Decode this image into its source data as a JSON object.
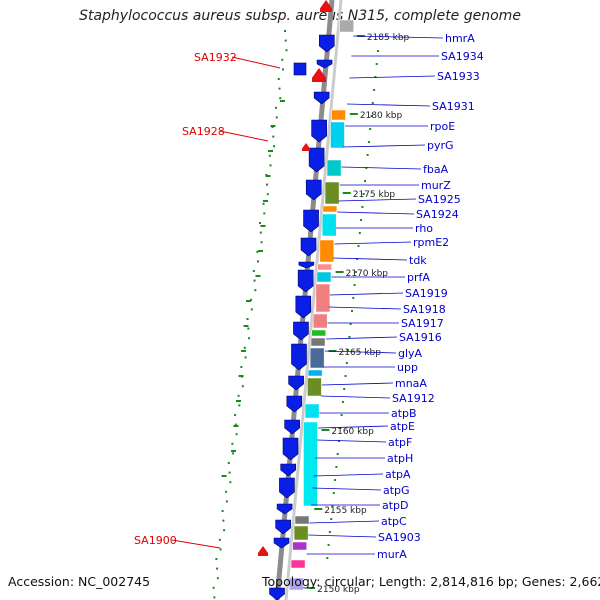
{
  "title": "Staphylococcus aureus subsp. aureus N315, complete genome",
  "footer": {
    "accession": "Accession: NC_002745",
    "topology": "Topology: circular; Length: 2,814,816 bp; Genes: 2,662"
  },
  "colors": {
    "gene_label": "#0000cc",
    "highlight_label": "#dd0000",
    "arrow_blue": "#0a1fe6",
    "arrow_red": "#e81010",
    "dot_green": "#1a8a1a",
    "backbone": "#8c8c8c"
  },
  "kbp_labels": [
    "2185 kbp",
    "2180 kbp",
    "2175 kbp",
    "2170 kbp",
    "2165 kbp",
    "2160 kbp",
    "2155 kbp",
    "2150 kbp"
  ],
  "right_genes": [
    "hmrA",
    "SA1934",
    "SA1933",
    "SA1931",
    "rpoE",
    "pyrG",
    "fbaA",
    "murZ",
    "SA1925",
    "SA1924",
    "rho",
    "rpmE2",
    "tdk",
    "prfA",
    "SA1919",
    "SA1918",
    "SA1917",
    "SA1916",
    "glyA",
    "upp",
    "mnaA",
    "SA1912",
    "atpB",
    "atpE",
    "atpF",
    "atpH",
    "atpA",
    "atpG",
    "atpD",
    "atpC",
    "SA1903",
    "murA"
  ],
  "left_genes": [
    "SA1932",
    "SA1928",
    "SA1900"
  ]
}
